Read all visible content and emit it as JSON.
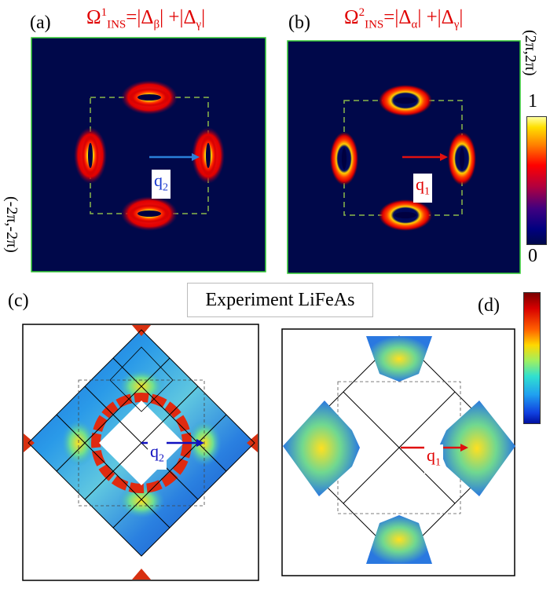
{
  "panels": {
    "a": {
      "label": "(a)",
      "formula": {
        "omega": "Ω",
        "sup": "1",
        "ins": "INS",
        "eq": "=|Δ",
        "sub1": "β",
        "mid": "| +|Δ",
        "sub2": "γ",
        "end": "|"
      },
      "q_label": {
        "main": "q",
        "sub": "2"
      },
      "arrow_color": "#2a7fd8"
    },
    "b": {
      "label": "(b)",
      "formula": {
        "omega": "Ω",
        "sup": "2",
        "ins": "INS",
        "eq": "=|Δ",
        "sub1": "α",
        "mid": "| +|Δ",
        "sub2": "γ",
        "end": "|"
      },
      "q_label": {
        "main": "q",
        "sub": "1"
      },
      "arrow_color": "#e01010"
    },
    "c": {
      "label": "(c)",
      "q_label": {
        "main": "q",
        "sub": "2"
      },
      "arrow_color": "#1010c0"
    },
    "d": {
      "label": "(d)",
      "q_label": {
        "main": "q",
        "sub": "1"
      },
      "arrow_color": "#e01010"
    }
  },
  "corner_top_right": "(2π,2π)",
  "corner_bottom_left": "(-2π,-2π)",
  "colorbar": {
    "max_label": "1",
    "min_label": "0"
  },
  "experiment_title": "Experiment LiFeAs",
  "colors": {
    "map_background": "#00084a",
    "frame_green": "#33cc33",
    "accent_red": "#e00000",
    "dashed_green": "#8ab84a"
  }
}
